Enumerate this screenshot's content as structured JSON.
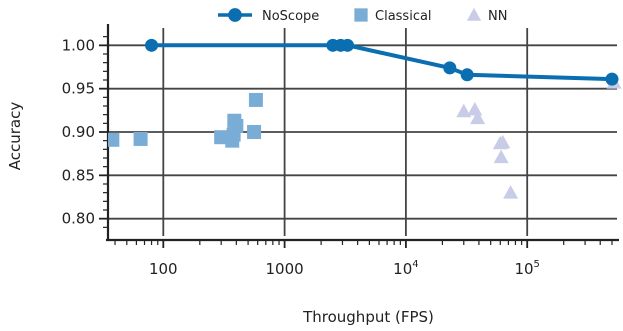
{
  "chart_data": {
    "type": "scatter",
    "title": "",
    "xlabel": "Throughput (FPS)",
    "ylabel": "Accuracy",
    "xscale": "log",
    "xlim": [
      35,
      550000
    ],
    "ylim": [
      0.78,
      1.02
    ],
    "grid": true,
    "legend_position": "top",
    "x_ticks": [
      {
        "value": 100,
        "label": "100",
        "exp": ""
      },
      {
        "value": 1000,
        "label": "1000",
        "exp": ""
      },
      {
        "value": 10000,
        "label": "10",
        "exp": "4"
      },
      {
        "value": 100000,
        "label": "10",
        "exp": "5"
      }
    ],
    "y_ticks": [
      {
        "value": 0.8,
        "label": "0.80"
      },
      {
        "value": 0.85,
        "label": "0.85"
      },
      {
        "value": 0.9,
        "label": "0.90"
      },
      {
        "value": 0.95,
        "label": "0.95"
      },
      {
        "value": 1.0,
        "label": "1.00"
      }
    ],
    "series": [
      {
        "name": "NoScope",
        "kind": "line-marker",
        "marker": "circle",
        "color": "#0a6eb0",
        "points": [
          {
            "x": 80,
            "y": 1.0
          },
          {
            "x": 2500,
            "y": 1.0
          },
          {
            "x": 2900,
            "y": 1.0
          },
          {
            "x": 3300,
            "y": 1.0
          },
          {
            "x": 23000,
            "y": 0.974
          },
          {
            "x": 32000,
            "y": 0.966
          },
          {
            "x": 500000,
            "y": 0.961
          }
        ]
      },
      {
        "name": "Classical",
        "kind": "marker",
        "marker": "square",
        "color": "#7aadd6",
        "points": [
          {
            "x": 38,
            "y": 0.891
          },
          {
            "x": 65,
            "y": 0.892
          },
          {
            "x": 300,
            "y": 0.894
          },
          {
            "x": 370,
            "y": 0.89
          },
          {
            "x": 380,
            "y": 0.897
          },
          {
            "x": 385,
            "y": 0.913
          },
          {
            "x": 400,
            "y": 0.907
          },
          {
            "x": 560,
            "y": 0.9
          },
          {
            "x": 580,
            "y": 0.937
          }
        ]
      },
      {
        "name": "NN",
        "kind": "marker",
        "marker": "triangle",
        "color": "#c8cce6",
        "points": [
          {
            "x": 30000,
            "y": 0.924
          },
          {
            "x": 37000,
            "y": 0.926
          },
          {
            "x": 39000,
            "y": 0.916
          },
          {
            "x": 60000,
            "y": 0.887
          },
          {
            "x": 63000,
            "y": 0.888
          },
          {
            "x": 61000,
            "y": 0.871
          },
          {
            "x": 73000,
            "y": 0.83
          },
          {
            "x": 520000,
            "y": 0.957
          }
        ]
      }
    ]
  }
}
